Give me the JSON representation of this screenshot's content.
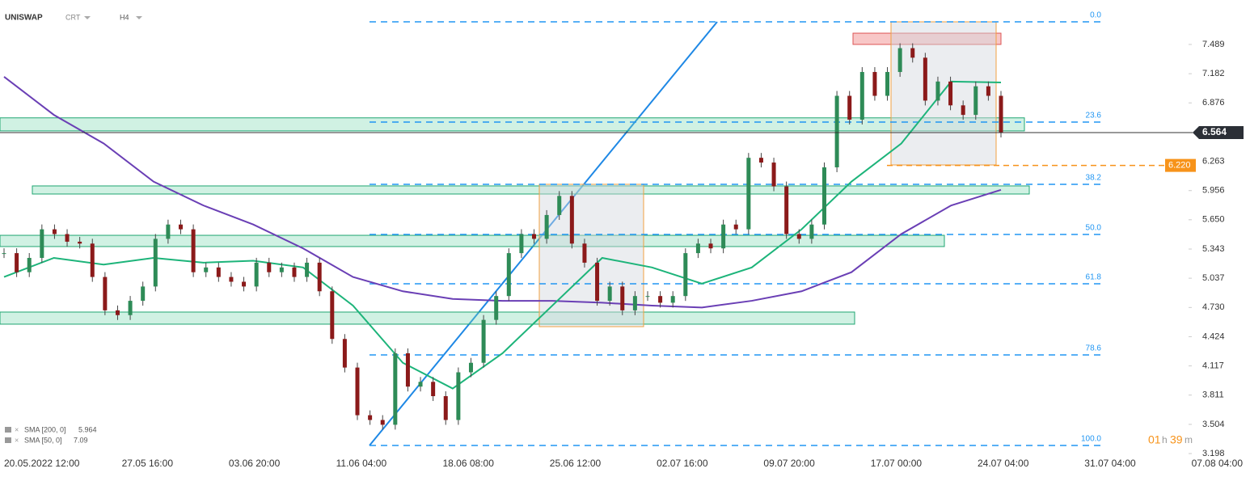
{
  "chart_data": {
    "type": "candlestick",
    "title": "UNISWAP",
    "instrument_type": "CRT",
    "interval": "H4",
    "ylim": [
      3.164,
      7.955
    ],
    "yticks": [
      7.489,
      7.182,
      6.876,
      6.263,
      5.956,
      {
        "value": 5.65,
        "label": "5.650"
      },
      5.343,
      5.037,
      {
        "value": 4.73,
        "label": "4.730"
      },
      4.424,
      4.117,
      3.811,
      3.504,
      3.198
    ],
    "categories": [
      "20.05.2022 12:00",
      "27.05 16:00",
      "03.06 20:00",
      "11.06 04:00",
      "18.06 08:00",
      "25.06 12:00",
      "02.07 16:00",
      "09.07 20:00",
      "17.07 00:00",
      "24.07 04:00",
      "31.07 04:00",
      "07.08 04:00"
    ],
    "closes": [
      5.3,
      5.1,
      5.25,
      5.55,
      5.5,
      5.42,
      5.4,
      5.05,
      4.7,
      4.65,
      4.8,
      4.95,
      5.45,
      5.6,
      5.55,
      5.1,
      5.15,
      5.05,
      5.0,
      4.95,
      5.2,
      5.1,
      5.15,
      5.05,
      5.2,
      4.9,
      4.4,
      4.1,
      3.6,
      3.55,
      3.5,
      4.25,
      3.9,
      3.95,
      3.8,
      3.55,
      4.05,
      4.15,
      4.6,
      4.85,
      5.3,
      5.5,
      5.45,
      5.7,
      5.9,
      5.4,
      5.2,
      4.8,
      4.95,
      4.7,
      4.85,
      4.85,
      4.78,
      4.85,
      5.3,
      5.4,
      5.35,
      5.6,
      5.55,
      6.3,
      6.25,
      6.0,
      5.5,
      5.45,
      5.6,
      6.2,
      6.95,
      6.7,
      7.2,
      6.95,
      7.2,
      7.45,
      7.35,
      6.9,
      7.1,
      6.85,
      6.75,
      7.05,
      6.95,
      6.564
    ],
    "up_color": "#2e8b57",
    "down_color": "#8b1a1a",
    "current_price": 6.564,
    "pending_level": {
      "value": 6.22,
      "label": "6.220",
      "color": "#f7931a"
    },
    "indicators": [
      {
        "name": "SMA [200, 0]",
        "last": 5.964,
        "color": "#6a3fb5",
        "values": [
          7.15,
          6.75,
          6.45,
          6.05,
          5.8,
          5.6,
          5.35,
          5.05,
          4.9,
          4.82,
          4.8,
          4.8,
          4.78,
          4.75,
          4.73,
          4.8,
          4.9,
          5.1,
          5.5,
          5.8,
          5.964
        ]
      },
      {
        "name": "SMA [50, 0]",
        "last": 7.09,
        "color": "#1db47a",
        "values": [
          5.05,
          5.25,
          5.18,
          5.25,
          5.2,
          5.22,
          5.15,
          4.75,
          4.15,
          3.88,
          4.25,
          4.75,
          5.25,
          5.15,
          4.98,
          5.15,
          5.55,
          6.05,
          6.45,
          7.1,
          7.09
        ]
      }
    ],
    "fib_levels": [
      {
        "label": "0.0",
        "price": 7.726
      },
      {
        "label": "23.6",
        "price": 6.675
      },
      {
        "label": "38.2",
        "price": 6.022
      },
      {
        "label": "50.0",
        "price": 5.496
      },
      {
        "label": "61.8",
        "price": 4.979
      },
      {
        "label": "78.6",
        "price": 4.232
      },
      {
        "label": "100.0",
        "price": 3.283
      }
    ],
    "zones": [
      {
        "low": 6.582,
        "high": 6.719,
        "color": "green"
      },
      {
        "low": 5.92,
        "high": 6.005,
        "color": "green"
      },
      {
        "low": 5.369,
        "high": 5.487,
        "color": "green"
      },
      {
        "low": 4.555,
        "high": 4.682,
        "color": "green"
      },
      {
        "low": 7.489,
        "high": 7.607,
        "color": "red"
      },
      {
        "low": 4.529,
        "high": 6.022,
        "color": "gray"
      },
      {
        "low": 6.225,
        "high": 7.726,
        "color": "gray"
      }
    ],
    "timer": {
      "hours": "01",
      "hours_unit": "h",
      "minutes": "39",
      "minutes_unit": "m"
    }
  }
}
